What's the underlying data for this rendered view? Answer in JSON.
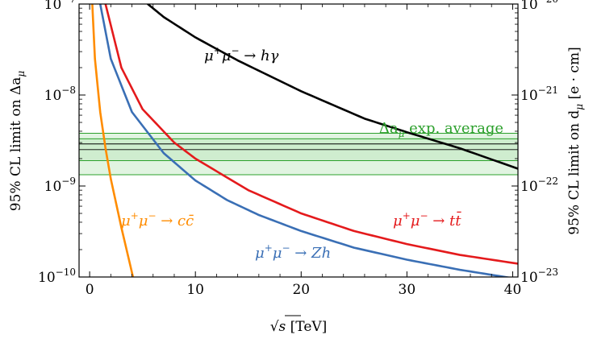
{
  "chart_data": {
    "type": "line",
    "x_axis": {
      "label_text": "[TeV]",
      "label_symbol": "√s",
      "lim": [
        -1,
        40.5
      ],
      "ticks": [
        0,
        10,
        20,
        30,
        40
      ],
      "tick_labels": [
        "0",
        "10",
        "20",
        "30",
        "40"
      ]
    },
    "y_left": {
      "label_prefix": "95% CL limit on Δa",
      "label_sub": "μ",
      "scale": "log",
      "lim": [
        1e-10,
        1e-07
      ],
      "ticks": [
        {
          "value": 1e-10,
          "base": "10",
          "exp": "−10"
        },
        {
          "value": 1e-09,
          "base": "10",
          "exp": "−9"
        },
        {
          "value": 1e-08,
          "base": "10",
          "exp": "−8"
        },
        {
          "value": 1e-07,
          "base": "10",
          "exp": "−7"
        }
      ]
    },
    "y_right": {
      "label_prefix": "95% CL limit on d",
      "label_sub": "μ",
      "label_unit": "[e · cm]",
      "scale": "log",
      "lim": [
        1e-23,
        1e-20
      ],
      "ticks": [
        {
          "value": 1e-23,
          "base": "10",
          "exp": "−23"
        },
        {
          "value": 1e-22,
          "base": "10",
          "exp": "−22"
        },
        {
          "value": 1e-21,
          "base": "10",
          "exp": "−21"
        },
        {
          "value": 1e-20,
          "base": "10",
          "exp": "−20"
        }
      ]
    },
    "band": {
      "label": "Δa",
      "label_sub": "μ",
      "label_rest": " exp. average",
      "color": "#2ca02c",
      "fill": "#c8ebc8",
      "outer": [
        1.33e-09,
        3.8e-09
      ],
      "inner": [
        1.9e-09,
        3.3e-09
      ],
      "central": [
        2.51e-09,
        2.9e-09
      ]
    },
    "series": [
      {
        "name": "μ⁺μ⁻ → hγ",
        "color": "#000000",
        "x": [
          5.5,
          7,
          10,
          14,
          20,
          26,
          30,
          35,
          40.5
        ],
        "y": [
          1e-07,
          7.2e-08,
          4.3e-08,
          2.4e-08,
          1.1e-08,
          5.5e-09,
          3.9e-09,
          2.6e-09,
          1.55e-09
        ]
      },
      {
        "name": "μ⁺μ⁻ → tt̄",
        "color": "#e41a1c",
        "x": [
          1.5,
          3,
          5,
          8,
          10,
          15,
          20,
          25,
          30,
          35,
          40.5
        ],
        "y": [
          1e-07,
          2e-08,
          7e-09,
          3e-09,
          2e-09,
          9e-10,
          5e-10,
          3.2e-10,
          2.3e-10,
          1.75e-10,
          1.4e-10
        ]
      },
      {
        "name": "μ⁺μ⁻ → Zh",
        "color": "#3a6fb5",
        "x": [
          1.0,
          2,
          4,
          7,
          10,
          13,
          16,
          20,
          25,
          30,
          35,
          40.5
        ],
        "y": [
          1e-07,
          2.5e-08,
          6.5e-09,
          2.3e-09,
          1.15e-09,
          7e-10,
          4.8e-10,
          3.2e-10,
          2.1e-10,
          1.55e-10,
          1.2e-10,
          9.5e-11
        ]
      },
      {
        "name": "μ⁺μ⁻ → cc̄",
        "color": "#ff8c00",
        "x": [
          0.25,
          0.5,
          1,
          1.5,
          2,
          3,
          4.1
        ],
        "y": [
          1e-07,
          2.5e-08,
          6.5e-09,
          2.6e-09,
          1.2e-09,
          3.5e-10,
          1e-10
        ]
      }
    ],
    "annotations": [
      {
        "series": 0,
        "parts": [
          [
            "μ",
            ""
          ],
          [
            "+",
            "sup"
          ],
          [
            "μ",
            ""
          ],
          [
            "−",
            "sup"
          ],
          [
            " → hγ",
            ""
          ]
        ]
      },
      {
        "series": 1,
        "parts": [
          [
            "μ",
            ""
          ],
          [
            "+",
            "sup"
          ],
          [
            "μ",
            ""
          ],
          [
            "−",
            "sup"
          ],
          [
            " → tt̄",
            ""
          ]
        ]
      },
      {
        "series": 2,
        "parts": [
          [
            "μ",
            ""
          ],
          [
            "+",
            "sup"
          ],
          [
            "μ",
            ""
          ],
          [
            "−",
            "sup"
          ],
          [
            " → Zh",
            ""
          ]
        ]
      },
      {
        "series": 3,
        "parts": [
          [
            "μ",
            ""
          ],
          [
            "+",
            "sup"
          ],
          [
            "μ",
            ""
          ],
          [
            "−",
            "sup"
          ],
          [
            " → cc̄",
            ""
          ]
        ]
      }
    ]
  }
}
